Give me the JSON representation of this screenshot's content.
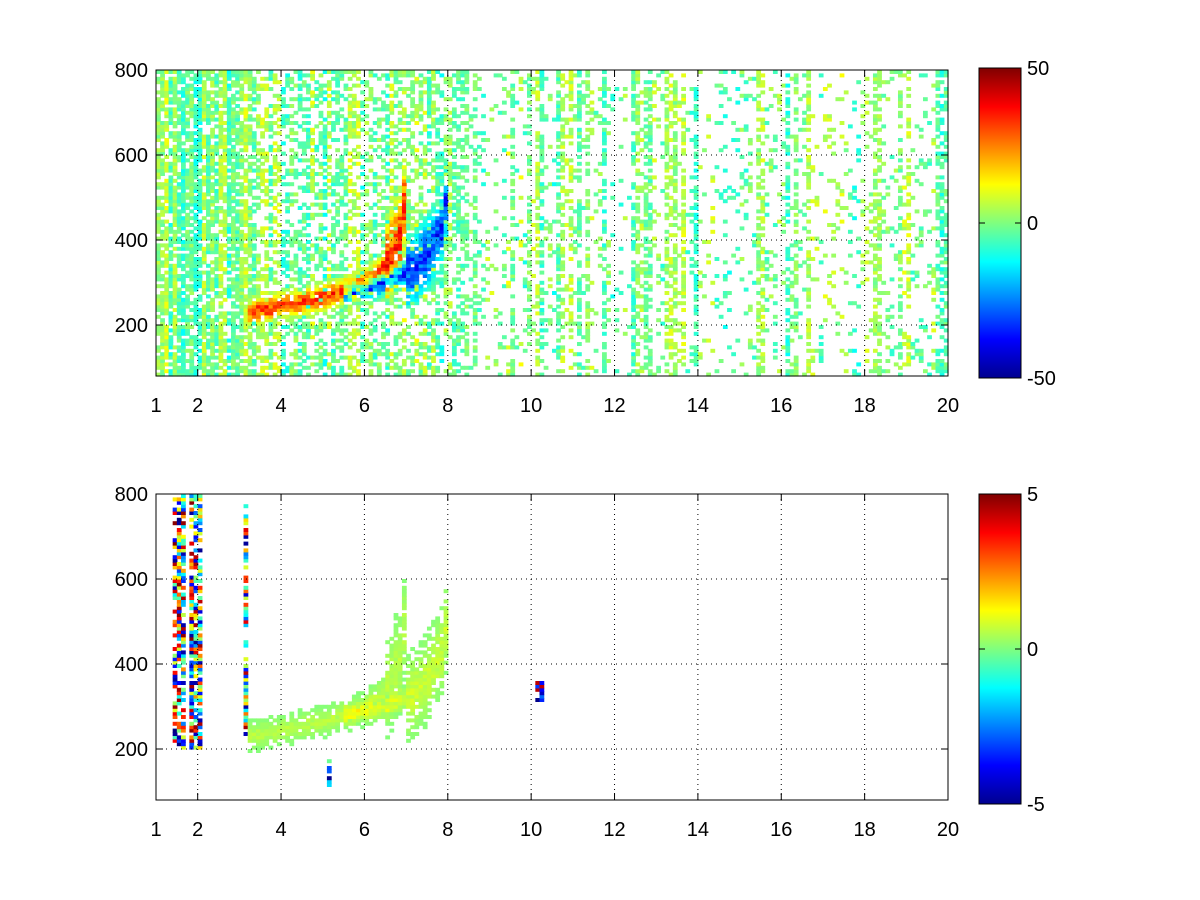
{
  "chart_data": [
    {
      "type": "heatmap",
      "title": "",
      "xlabel": "",
      "ylabel": "",
      "xlim": [
        1,
        20
      ],
      "ylim": [
        80,
        800
      ],
      "xticks": [
        "1",
        "2",
        "4",
        "6",
        "8",
        "10",
        "12",
        "14",
        "16",
        "18",
        "20"
      ],
      "yticks": [
        "200",
        "400",
        "600",
        "800"
      ],
      "grid": true,
      "colormap": "jet",
      "colorbar": {
        "clim": [
          -50,
          50
        ],
        "ticks": [
          "50",
          "0",
          "-50"
        ]
      },
      "features": {
        "ridge_positive": {
          "description_points": [
            [
              3.2,
              230
            ],
            [
              4.0,
              245
            ],
            [
              5.0,
              265
            ],
            [
              6.0,
              300
            ],
            [
              6.5,
              340
            ],
            [
              6.9,
              420
            ],
            [
              7.0,
              550
            ]
          ],
          "value": 35
        },
        "ridge_negative": {
          "description_points": [
            [
              5.5,
              275
            ],
            [
              6.5,
              300
            ],
            [
              7.2,
              330
            ],
            [
              7.6,
              380
            ],
            [
              7.9,
              440
            ],
            [
              8.0,
              530
            ]
          ],
          "value": -35
        },
        "noise_x_range": [
          1,
          20
        ],
        "noise_amplitude": 8
      }
    },
    {
      "type": "heatmap",
      "title": "",
      "xlabel": "",
      "ylabel": "",
      "xlim": [
        1,
        20
      ],
      "ylim": [
        80,
        800
      ],
      "xticks": [
        "1",
        "2",
        "4",
        "6",
        "8",
        "10",
        "12",
        "14",
        "16",
        "18",
        "20"
      ],
      "yticks": [
        "200",
        "400",
        "600",
        "800"
      ],
      "grid": true,
      "colormap": "jet",
      "colorbar": {
        "clim": [
          -5,
          5
        ],
        "ticks": [
          "5",
          "0",
          "-5"
        ]
      },
      "features": {
        "ridge_positive": {
          "description_points": [
            [
              3.2,
              230
            ],
            [
              4.0,
              245
            ],
            [
              5.0,
              265
            ],
            [
              6.0,
              300
            ],
            [
              6.5,
              340
            ],
            [
              6.9,
              420
            ],
            [
              7.0,
              550
            ]
          ],
          "value": 0.6
        },
        "ridge_negative": {
          "description_points": [
            [
              5.5,
              275
            ],
            [
              6.5,
              300
            ],
            [
              7.2,
              330
            ],
            [
              7.6,
              380
            ],
            [
              7.9,
              440
            ],
            [
              8.0,
              530
            ]
          ],
          "value": 0.8
        },
        "isolated_stripes_x": [
          1.45,
          1.6,
          1.85,
          2.0,
          3.15,
          5.15,
          10.2
        ],
        "noise_x_range": [
          1,
          3.3
        ]
      }
    }
  ]
}
